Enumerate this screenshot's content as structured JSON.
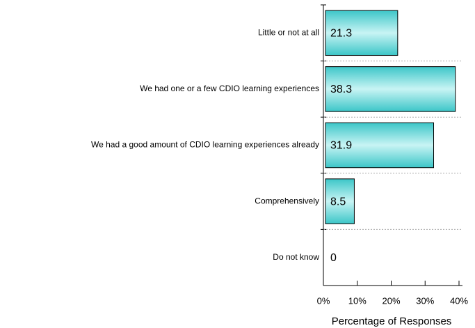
{
  "chart_data": {
    "type": "barh",
    "categories": [
      "Little or not at all",
      "We had one or a few CDIO learning experiences",
      "We had a good amount of CDIO learning experiences already",
      "Comprehensively",
      "Do not know"
    ],
    "values": [
      21.3,
      38.3,
      31.9,
      8.5,
      0
    ],
    "color": "#3cc6c8",
    "xlabel": "Percentage of Responses",
    "xlim": [
      0,
      40
    ],
    "xticks": [
      {
        "value": 0,
        "label": "0%"
      },
      {
        "value": 10,
        "label": "10%"
      },
      {
        "value": 20,
        "label": "20%"
      },
      {
        "value": 30,
        "label": "30%"
      },
      {
        "value": 40,
        "label": "40%"
      }
    ],
    "grid": true
  }
}
